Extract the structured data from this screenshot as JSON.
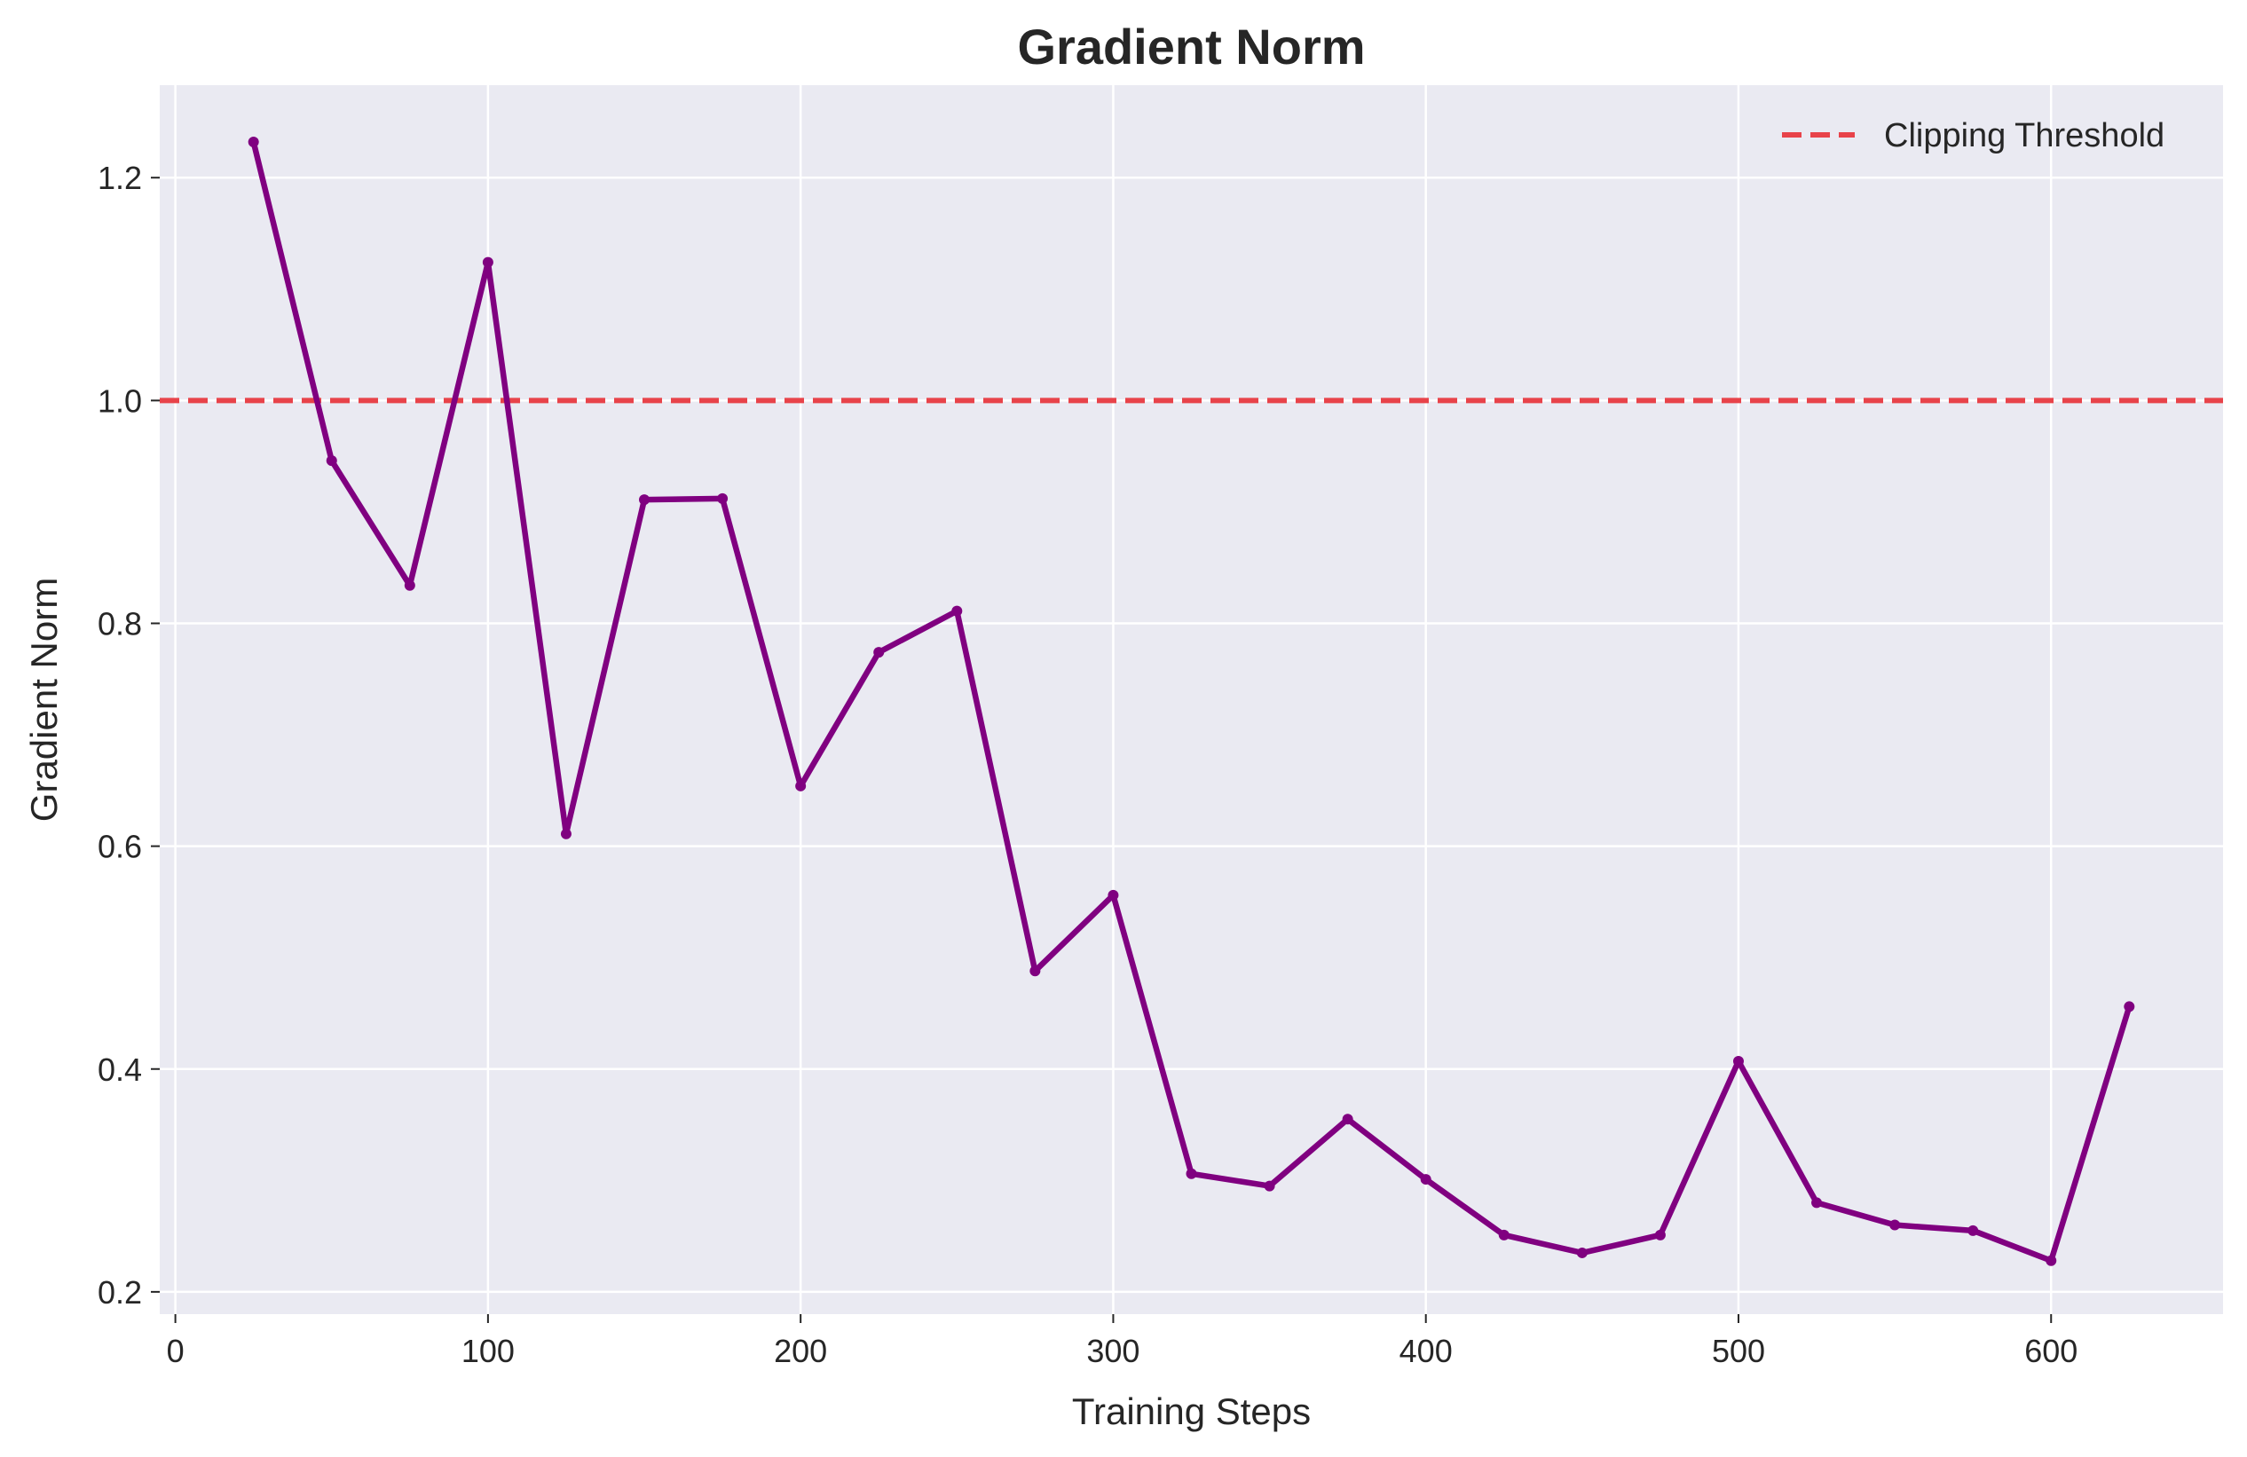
{
  "chart_data": {
    "type": "line",
    "title": "Gradient Norm",
    "xlabel": "Training Steps",
    "ylabel": "Gradient Norm",
    "xlim": [
      -5,
      655
    ],
    "ylim": [
      0.18,
      1.283
    ],
    "xticks": [
      0,
      100,
      200,
      300,
      400,
      500,
      600
    ],
    "yticks": [
      0.2,
      0.4,
      0.6,
      0.8,
      1.0,
      1.2
    ],
    "grid": true,
    "legend_position": "top-right",
    "x": [
      25,
      50,
      75,
      100,
      125,
      150,
      175,
      200,
      225,
      250,
      275,
      300,
      325,
      350,
      375,
      400,
      425,
      450,
      475,
      500,
      525,
      550,
      575,
      600,
      625
    ],
    "series": [
      {
        "color": "#800080",
        "values": [
          1.232,
          0.946,
          0.834,
          1.124,
          0.611,
          0.911,
          0.912,
          0.654,
          0.774,
          0.811,
          0.488,
          0.556,
          0.306,
          0.295,
          0.355,
          0.301,
          0.251,
          0.235,
          0.251,
          0.407,
          0.28,
          0.26,
          0.255,
          0.228,
          0.456
        ]
      }
    ],
    "reference_lines": [
      {
        "name": "Clipping Threshold",
        "y": 1.0,
        "style": "dashed",
        "color": "#e8434a"
      }
    ],
    "colors": {
      "plot_background": "#eaeaf2",
      "grid": "#ffffff",
      "text": "#262626"
    }
  }
}
